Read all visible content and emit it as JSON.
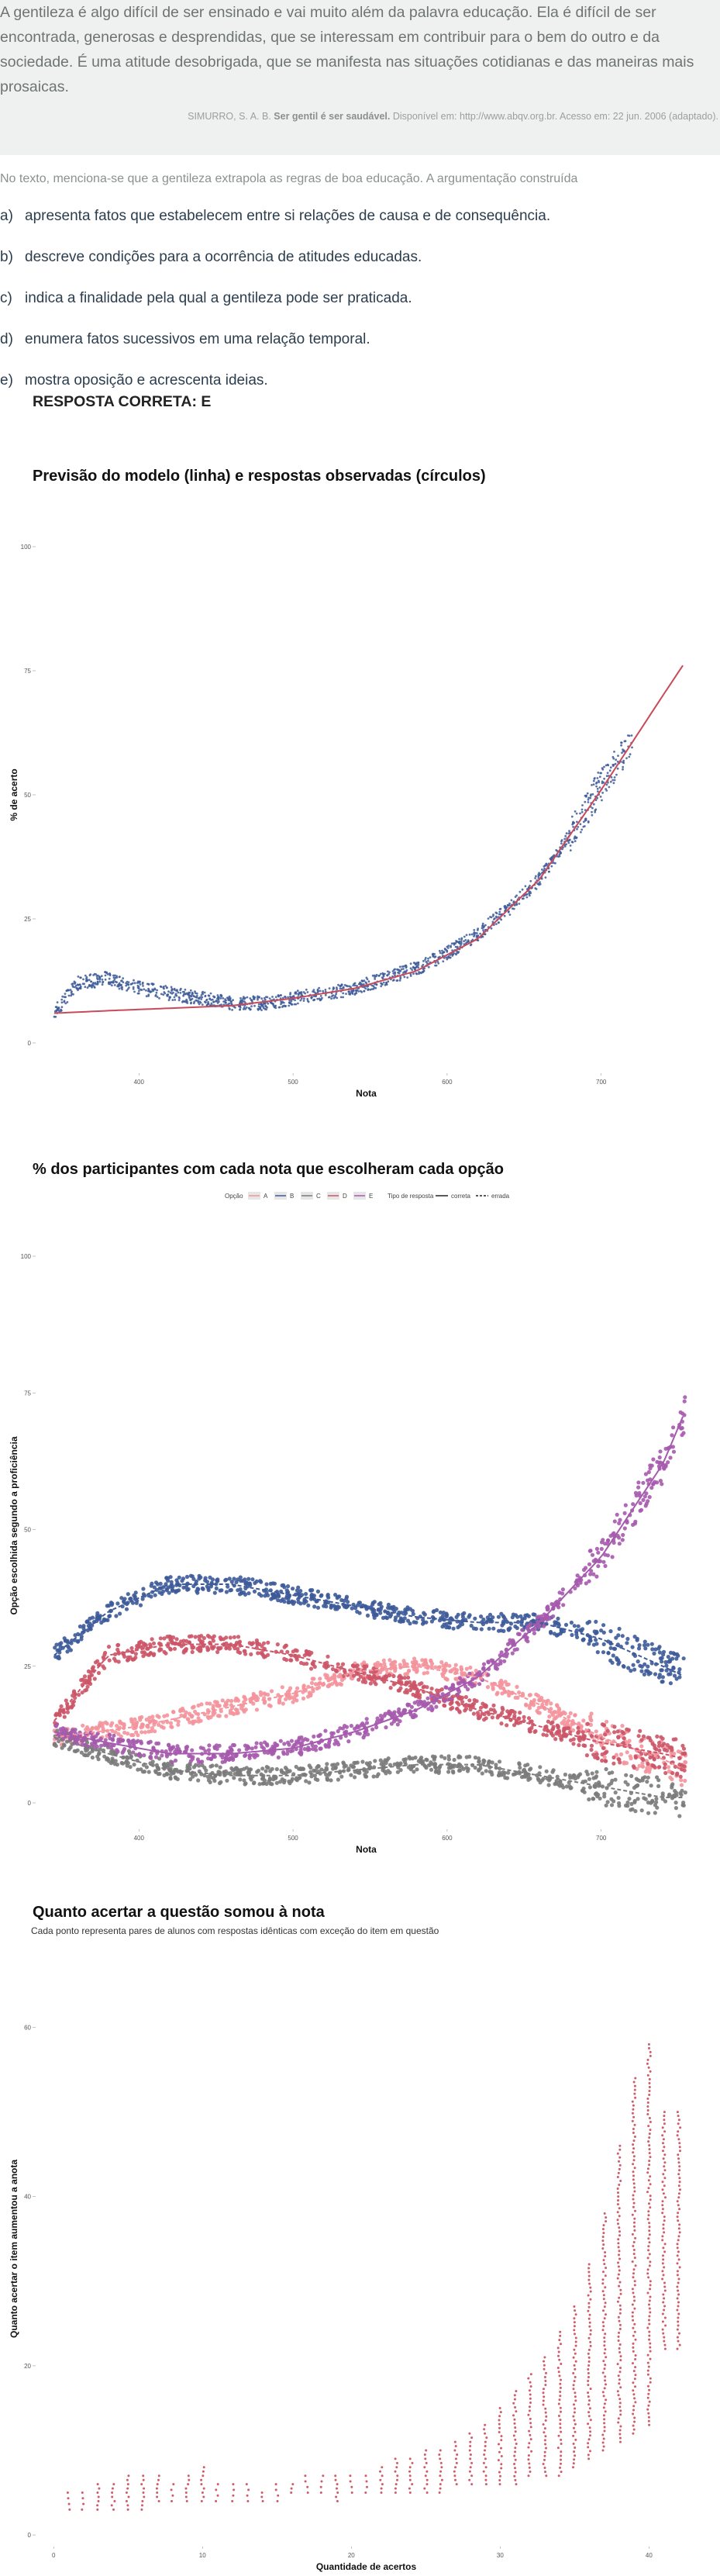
{
  "passage": {
    "text": "A gentileza é algo difícil de ser ensinado e vai muito além da palavra educação. Ela é difícil de ser encontrada, generosas e desprendidas, que se interessam em contribuir para o bem do outro e da sociedade. É uma atitude desobrigada, que se manifesta nas situações cotidianas e das maneiras mais prosaicas.",
    "citation_author": "SIMURRO, S. A. B.",
    "citation_title": "Ser gentil é ser saudável.",
    "citation_rest": "Disponível em: http://www.abqv.org.br. Acesso em: 22 jun. 2006 (adaptado)."
  },
  "question": "No texto, menciona-se que a gentileza extrapola as regras de boa educação. A argumentação construída",
  "options": [
    {
      "letter": "a)",
      "text": "apresenta fatos que estabelecem entre si relações de causa e de consequência."
    },
    {
      "letter": "b)",
      "text": "descreve condições para a ocorrência de atitudes educadas."
    },
    {
      "letter": "c)",
      "text": "indica a finalidade pela qual a gentileza pode ser praticada."
    },
    {
      "letter": "d)",
      "text": "enumera fatos sucessivos em uma relação temporal."
    },
    {
      "letter": "e)",
      "text": "mostra oposição e acrescenta ideias."
    }
  ],
  "answer": "RESPOSTA CORRETA: E",
  "chart_data": [
    {
      "type": "scatter",
      "title": "Previsão do modelo (linha) e respostas observadas (círculos)",
      "xlabel": "Nota",
      "ylabel": "% de acerto",
      "xlim": [
        340,
        760
      ],
      "ylim": [
        0,
        100
      ],
      "xticks": [
        400,
        500,
        600,
        700
      ],
      "yticks": [
        0,
        25,
        50,
        75,
        100
      ],
      "colors": {
        "points": "#3d5a99",
        "line": "#c94a5a"
      },
      "observed": {
        "x": [
          345,
          360,
          380,
          400,
          420,
          440,
          460,
          480,
          500,
          520,
          540,
          560,
          580,
          600,
          620,
          640,
          660,
          680,
          700,
          720
        ],
        "y": [
          6,
          12,
          13,
          11,
          10,
          9,
          8,
          8,
          9,
          10,
          11,
          13,
          15,
          18,
          22,
          27,
          33,
          42,
          52,
          60
        ]
      },
      "model": {
        "x": [
          345,
          380,
          420,
          460,
          500,
          540,
          580,
          620,
          660,
          700,
          740,
          755
        ],
        "y": [
          6,
          6.5,
          7,
          7.5,
          9,
          11,
          14.5,
          21,
          33,
          51,
          70,
          77
        ]
      }
    },
    {
      "type": "scatter",
      "title": "% dos participantes com cada nota que escolheram cada opção",
      "xlabel": "Nota",
      "ylabel": "Opção escolhida segundo a proficiência",
      "xlim": [
        340,
        760
      ],
      "ylim": [
        0,
        100
      ],
      "xticks": [
        400,
        500,
        600,
        700
      ],
      "yticks": [
        0,
        25,
        50,
        75,
        100
      ],
      "legend": {
        "option_title": "Opção",
        "type_title": "Tipo de resposta",
        "correct": "correta",
        "wrong": "errada"
      },
      "series": [
        {
          "name": "A",
          "color": "#f4939c",
          "x": [
            345,
            400,
            450,
            500,
            540,
            580,
            620,
            660,
            700,
            740,
            755
          ],
          "y": [
            12,
            14,
            17,
            20,
            24,
            25,
            23,
            18,
            12,
            8,
            6
          ]
        },
        {
          "name": "B",
          "color": "#3d5a99",
          "x": [
            345,
            380,
            420,
            460,
            500,
            540,
            580,
            620,
            660,
            700,
            740,
            755
          ],
          "y": [
            27,
            35,
            40,
            40,
            38,
            36,
            34,
            33,
            33,
            30,
            25,
            23
          ]
        },
        {
          "name": "C",
          "color": "#7b7b7b",
          "x": [
            345,
            380,
            420,
            460,
            500,
            540,
            580,
            620,
            660,
            700,
            740,
            755
          ],
          "y": [
            12,
            9,
            6,
            5,
            5,
            6,
            7,
            7,
            5,
            3,
            1,
            1
          ]
        },
        {
          "name": "D",
          "color": "#cc5568",
          "x": [
            345,
            380,
            420,
            460,
            500,
            540,
            580,
            620,
            660,
            700,
            740,
            755
          ],
          "y": [
            15,
            27,
            29,
            29,
            27,
            24,
            21,
            17,
            14,
            11,
            9,
            8
          ]
        },
        {
          "name": "E",
          "color": "#a65aad",
          "x": [
            345,
            380,
            420,
            460,
            500,
            540,
            580,
            620,
            660,
            700,
            740,
            755
          ],
          "y": [
            13,
            11,
            9,
            9,
            10,
            13,
            17,
            23,
            33,
            45,
            62,
            72
          ]
        }
      ]
    },
    {
      "type": "scatter",
      "title": "Quanto acertar a questão somou à nota",
      "subtitle": "Cada ponto representa pares de alunos com respostas idênticas com exceção do item em questão",
      "xlabel": "Quantidade de acertos",
      "ylabel": "Quanto acertar o item aumentou a anota",
      "xlim": [
        -1,
        43
      ],
      "ylim": [
        -1,
        65
      ],
      "xticks": [
        0,
        10,
        20,
        30,
        40
      ],
      "yticks": [
        0,
        20,
        40,
        60
      ],
      "color": "#c94a5a",
      "x": [
        1,
        2,
        3,
        4,
        5,
        6,
        7,
        8,
        9,
        10,
        11,
        12,
        13,
        14,
        15,
        16,
        17,
        18,
        19,
        20,
        21,
        22,
        23,
        24,
        25,
        26,
        27,
        28,
        29,
        30,
        31,
        32,
        33,
        34,
        35,
        36,
        37,
        38,
        39,
        40,
        41,
        42
      ],
      "y_min": [
        3,
        3,
        3,
        3,
        3,
        3,
        4,
        4,
        4,
        4,
        4,
        4,
        4,
        4,
        4,
        5,
        5,
        5,
        4,
        5,
        5,
        5,
        5,
        5,
        5,
        5,
        6,
        6,
        6,
        6,
        6,
        7,
        7,
        7,
        8,
        9,
        10,
        11,
        12,
        13,
        22,
        22
      ],
      "y_max": [
        5,
        5,
        6,
        6,
        7,
        7,
        7,
        6,
        7,
        8,
        6,
        6,
        6,
        5,
        6,
        6,
        7,
        7,
        7,
        7,
        7,
        8,
        9,
        9,
        10,
        10,
        11,
        12,
        13,
        15,
        17,
        19,
        21,
        24,
        27,
        32,
        38,
        46,
        54,
        58,
        50,
        50
      ]
    }
  ]
}
